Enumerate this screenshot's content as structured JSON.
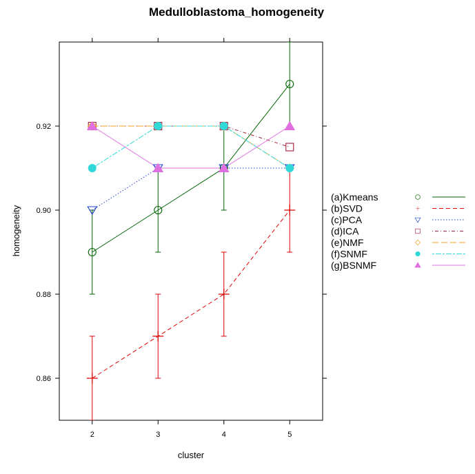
{
  "chart_data": {
    "type": "line",
    "title": "Medulloblastoma_homogeneity",
    "xlabel": "cluster",
    "ylabel": "homogeneity",
    "x": [
      2,
      3,
      4,
      5
    ],
    "xlim": [
      1.5,
      5.5
    ],
    "ylim": [
      0.85,
      0.94
    ],
    "x_ticks": [
      2,
      3,
      4,
      5
    ],
    "y_ticks": [
      0.86,
      0.88,
      0.9,
      0.92
    ],
    "y_tick_labels": [
      "0.86",
      "0.88",
      "0.90",
      "0.92"
    ],
    "legend_position": "right",
    "series": [
      {
        "name": "(a)Kmeans",
        "values": [
          0.89,
          0.9,
          0.91,
          0.93
        ],
        "err_low": [
          0.88,
          0.89,
          0.9,
          0.92
        ],
        "err_high": [
          0.9,
          0.91,
          0.92,
          0.94
        ],
        "color": "#006400",
        "marker": "open-circle",
        "dash": "solid"
      },
      {
        "name": "(b)SVD",
        "values": [
          0.86,
          0.87,
          0.88,
          0.9
        ],
        "err_low": [
          0.85,
          0.86,
          0.87,
          0.89
        ],
        "err_high": [
          0.87,
          0.88,
          0.89,
          0.91
        ],
        "color": "#e00000",
        "marker": "plus",
        "dash": "dashed"
      },
      {
        "name": "(c)PCA",
        "values": [
          0.9,
          0.91,
          0.91,
          0.91
        ],
        "color": "#1f3fd0",
        "marker": "open-triangle-down",
        "dash": "dotted"
      },
      {
        "name": "(d)ICA",
        "values": [
          0.92,
          0.92,
          0.92,
          0.915
        ],
        "color": "#a0203a",
        "marker": "open-square",
        "dash": "dotdash"
      },
      {
        "name": "(e)NMF",
        "values": [
          0.92,
          0.92,
          0.92,
          0.91
        ],
        "color": "#f0a020",
        "marker": "open-diamond",
        "dash": "longdash"
      },
      {
        "name": "(f)SNMF",
        "values": [
          0.91,
          0.92,
          0.92,
          0.91
        ],
        "color": "#30d8d8",
        "marker": "filled-circle",
        "dash": "twodash"
      },
      {
        "name": "(g)BSNMF",
        "values": [
          0.92,
          0.91,
          0.91,
          0.92
        ],
        "color": "#e070e0",
        "marker": "filled-triangle-up",
        "dash": "solid"
      }
    ]
  }
}
